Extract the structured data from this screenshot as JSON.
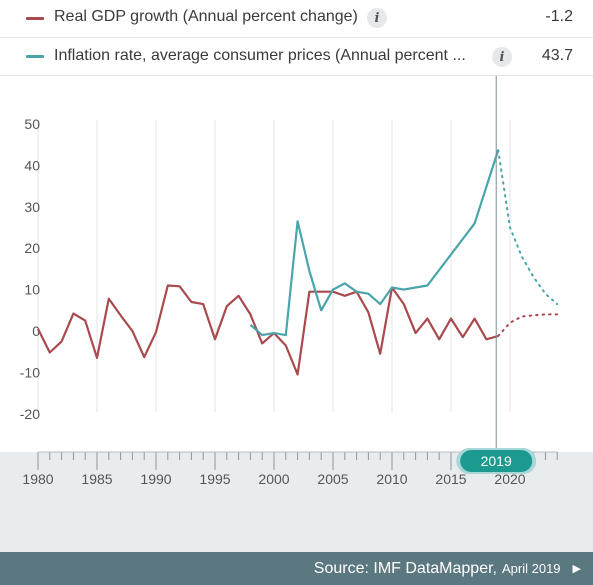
{
  "legend": [
    {
      "label": "Real GDP growth (Annual percent change)",
      "value": "-1.2",
      "info_icon": "info-icon",
      "color": "#a94a4e"
    },
    {
      "label": "Inflation rate, average consumer prices (Annual percent ...",
      "value": "43.7",
      "info_icon": "info-icon",
      "color": "#4aa5ab"
    }
  ],
  "info_glyph": "i",
  "selected_year": "2019",
  "source": {
    "text": "Source: IMF DataMapper,",
    "date": "April 2019",
    "arrow": "▶"
  },
  "chart_data": {
    "type": "line",
    "ylim": [
      -20,
      50
    ],
    "yticks": [
      50,
      40,
      30,
      20,
      10,
      0,
      -10,
      -20
    ],
    "xlim": [
      1980,
      2024
    ],
    "xticks": [
      1980,
      1985,
      1990,
      1995,
      2000,
      2005,
      2010,
      2015,
      2020
    ],
    "grid": "vertical",
    "highlight_year": 2019,
    "series": [
      {
        "name": "Real GDP growth (Annual percent change)",
        "color": "#a94a4e",
        "x": [
          1980,
          1981,
          1982,
          1983,
          1984,
          1985,
          1986,
          1987,
          1988,
          1989,
          1990,
          1991,
          1992,
          1993,
          1994,
          1995,
          1996,
          1997,
          1998,
          1999,
          2000,
          2001,
          2002,
          2003,
          2004,
          2005,
          2006,
          2007,
          2008,
          2009,
          2010,
          2011,
          2012,
          2013,
          2014,
          2015,
          2016,
          2017,
          2018,
          2019
        ],
        "values": [
          0.5,
          -5.2,
          -2.5,
          4.2,
          2.5,
          -6.5,
          7.8,
          3.8,
          0,
          -6.3,
          -0.3,
          11,
          10.8,
          7,
          6.5,
          -2,
          6,
          8.5,
          4,
          -3,
          -0.5,
          -3.5,
          -10.5,
          9.5,
          9.5,
          9.5,
          8.5,
          9.5,
          4.5,
          -5.5,
          10.5,
          6.5,
          -0.5,
          3,
          -2,
          3,
          -1.5,
          3,
          -2,
          -1.2
        ]
      },
      {
        "name": "Inflation rate, average consumer prices (Annual percent change)",
        "color": "#4aa5ab",
        "x": [
          1998,
          1999,
          2000,
          2001,
          2002,
          2003,
          2004,
          2005,
          2006,
          2007,
          2008,
          2009,
          2010,
          2011,
          2012,
          2013,
          2017,
          2019
        ],
        "values": [
          1.5,
          -1,
          -0.5,
          -1,
          26.5,
          14.5,
          5,
          10,
          11.5,
          9.5,
          9,
          6.5,
          10.5,
          10,
          10.5,
          11,
          26,
          43.7
        ]
      }
    ],
    "projections": [
      {
        "name": "Real GDP growth projection",
        "color": "#a94a4e",
        "x": [
          2019,
          2020,
          2021,
          2022,
          2023,
          2024
        ],
        "values": [
          -1.2,
          2,
          3.5,
          3.8,
          4,
          4
        ]
      },
      {
        "name": "Inflation projection",
        "color": "#4aa5ab",
        "x": [
          2019,
          2020,
          2021,
          2022,
          2023,
          2024
        ],
        "values": [
          43.7,
          25,
          18,
          13,
          9,
          6.5
        ]
      }
    ]
  }
}
